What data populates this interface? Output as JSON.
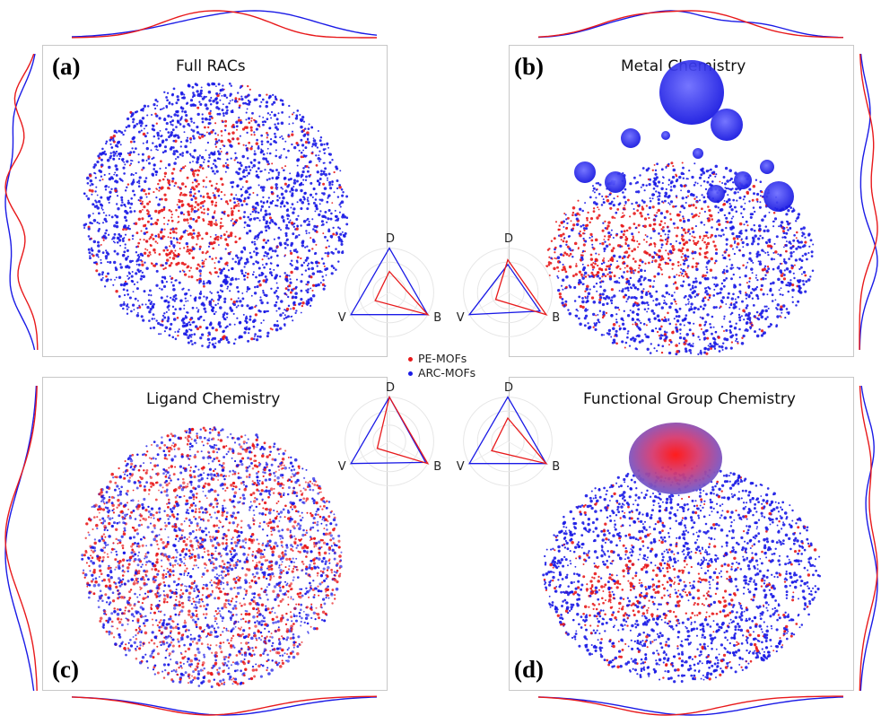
{
  "figure": {
    "panels": [
      {
        "letter": "(a)",
        "title": "Full RACs"
      },
      {
        "letter": "(b)",
        "title": "Metal Chemistry"
      },
      {
        "letter": "(c)",
        "title": "Ligand Chemistry"
      },
      {
        "letter": "(d)",
        "title": "Functional Group Chemistry"
      }
    ],
    "legend": [
      {
        "label": "PE-MOFs",
        "color": "#e8191b"
      },
      {
        "label": "ARC-MOFs",
        "color": "#1a1ae6"
      }
    ],
    "radar_axes": [
      "D",
      "V",
      "B"
    ]
  },
  "colors": {
    "pe": "#e8191b",
    "arc": "#1a1ae6"
  },
  "chart_data": [
    {
      "type": "radar",
      "panel": "a",
      "axes": [
        "D",
        "V",
        "B"
      ],
      "series": [
        {
          "name": "PE-MOFs",
          "values": [
            0.45,
            0.35,
            0.95
          ]
        },
        {
          "name": "ARC-MOFs",
          "values": [
            0.95,
            0.95,
            0.95
          ]
        }
      ]
    },
    {
      "type": "radar",
      "panel": "b",
      "axes": [
        "D",
        "V",
        "B"
      ],
      "series": [
        {
          "name": "PE-MOFs",
          "values": [
            0.7,
            0.3,
            0.95
          ]
        },
        {
          "name": "ARC-MOFs",
          "values": [
            0.6,
            0.95,
            0.8
          ]
        }
      ]
    },
    {
      "type": "radar",
      "panel": "c",
      "axes": [
        "D",
        "V",
        "B"
      ],
      "series": [
        {
          "name": "PE-MOFs",
          "values": [
            0.95,
            0.3,
            0.95
          ]
        },
        {
          "name": "ARC-MOFs",
          "values": [
            0.95,
            0.95,
            0.9
          ]
        }
      ]
    },
    {
      "type": "radar",
      "panel": "d",
      "axes": [
        "D",
        "V",
        "B"
      ],
      "series": [
        {
          "name": "PE-MOFs",
          "values": [
            0.5,
            0.4,
            0.95
          ]
        },
        {
          "name": "ARC-MOFs",
          "values": [
            0.95,
            0.95,
            0.95
          ]
        }
      ]
    }
  ]
}
